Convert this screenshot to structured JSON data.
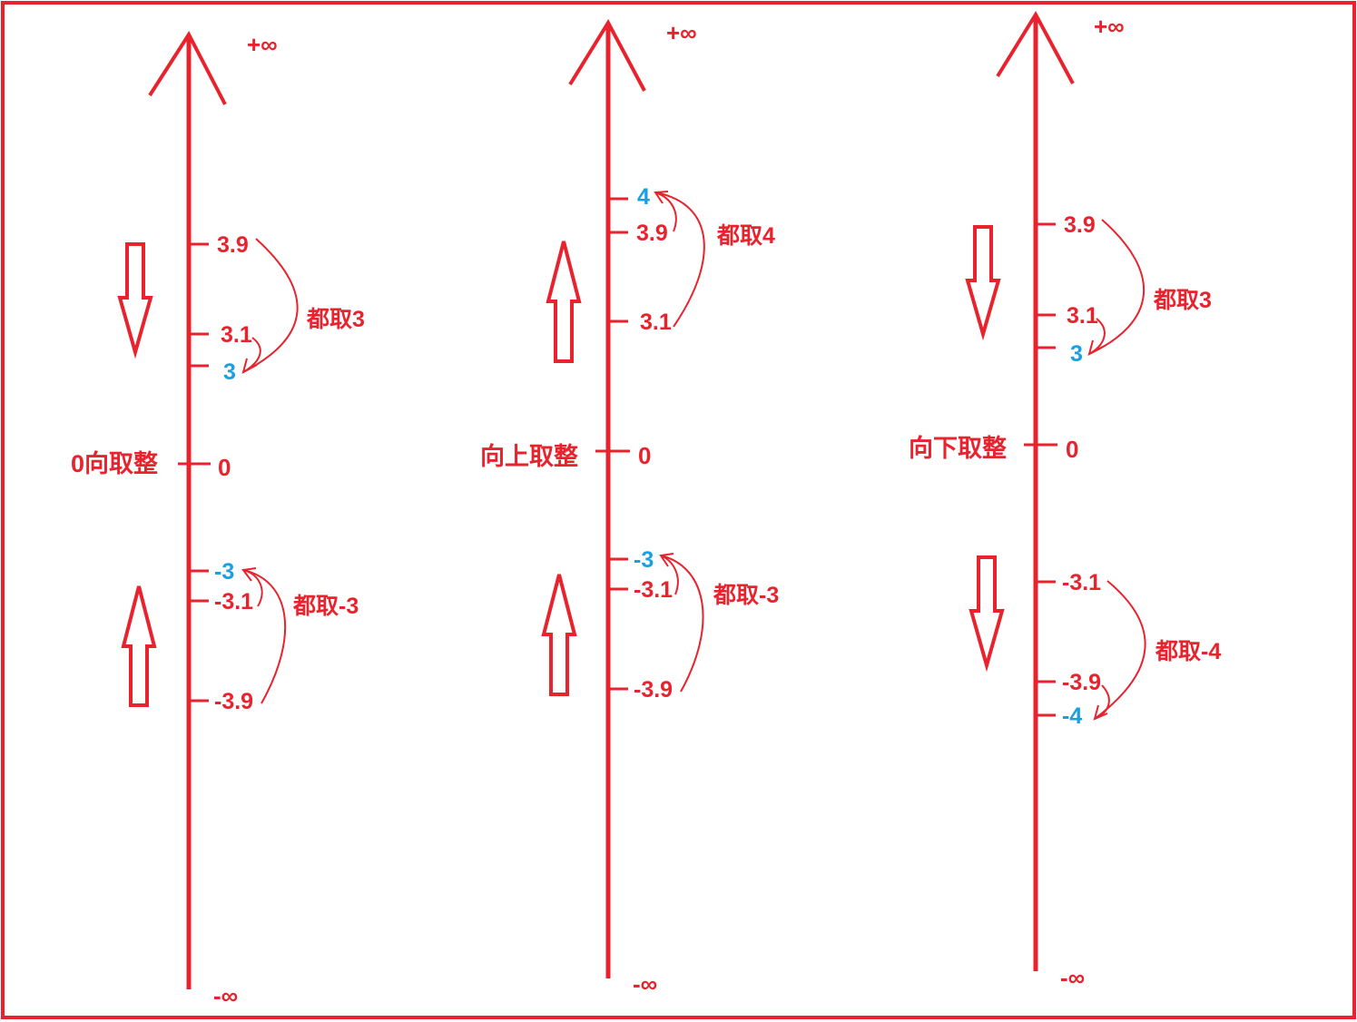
{
  "colors": {
    "primary": "#e8232d",
    "highlight": "#1aa0e0"
  },
  "diagrams": [
    {
      "title": "0向取整",
      "pos_inf": "+∞",
      "neg_inf": "-∞",
      "zero": "0",
      "pos_labels": [
        "3.9",
        "3.1",
        "3"
      ],
      "neg_labels": [
        "-3",
        "-3.1",
        "-3.9"
      ],
      "pos_note": "都取3",
      "neg_note": "都取-3",
      "pos_arrow": "down",
      "neg_arrow": "up"
    },
    {
      "title": "向上取整",
      "pos_inf": "+∞",
      "neg_inf": "-∞",
      "zero": "0",
      "pos_labels": [
        "4",
        "3.9",
        "3.1"
      ],
      "neg_labels": [
        "-3",
        "-3.1",
        "-3.9"
      ],
      "pos_note": "都取4",
      "neg_note": "都取-3",
      "pos_arrow": "up",
      "neg_arrow": "up"
    },
    {
      "title": "向下取整",
      "pos_inf": "+∞",
      "neg_inf": "-∞",
      "zero": "0",
      "pos_labels": [
        "3.9",
        "3.1",
        "3"
      ],
      "neg_labels": [
        "-3.1",
        "-3.9",
        "-4"
      ],
      "pos_note": "都取3",
      "neg_note": "都取-4",
      "pos_arrow": "down",
      "neg_arrow": "down"
    }
  ]
}
